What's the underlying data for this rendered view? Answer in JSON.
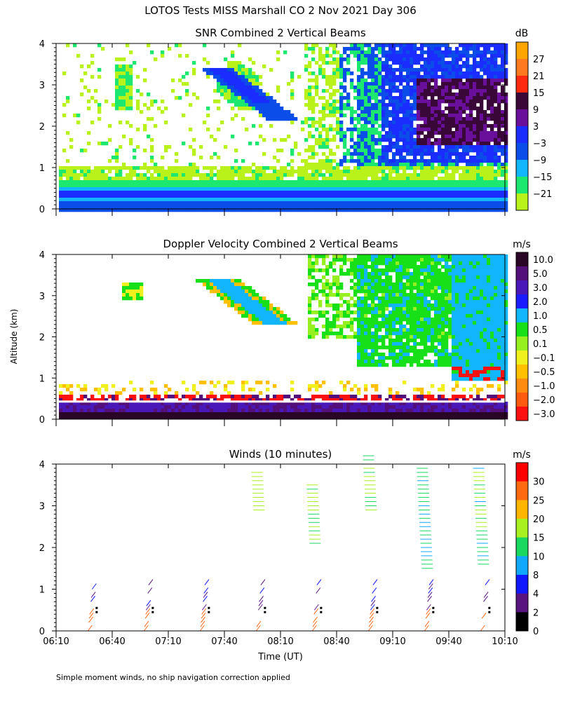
{
  "figure": {
    "title": "LOTOS Tests MISS Marshall CO   2 Nov 2021 Day 306",
    "ylabel": "Altitude (km)",
    "xlabel": "Time (UT)",
    "footnote": "Simple moment winds, no ship navigation correction applied",
    "x_ticks": [
      "06:10",
      "06:40",
      "07:10",
      "07:40",
      "08:10",
      "08:40",
      "09:10",
      "09:40",
      "10:10"
    ],
    "y_ticks": [
      "0",
      "1",
      "2",
      "3",
      "4"
    ]
  },
  "chart_data": [
    {
      "type": "heatmap",
      "title": "SNR Combined 2 Vertical Beams",
      "unit": "dB",
      "x_range": [
        "06:10",
        "10:10"
      ],
      "ylim": [
        0,
        4
      ],
      "colorbar_labels": [
        "27",
        "21",
        "15",
        "9",
        "3",
        "−3",
        "−9",
        "−15",
        "−21"
      ],
      "colorbar_colors": [
        "#ffa500",
        "#ff7a1f",
        "#ff2a10",
        "#3a0838",
        "#6a0f9c",
        "#1a2cff",
        "#0b4de8",
        "#11b6ff",
        "#1ce870",
        "#b8f21a"
      ]
    },
    {
      "type": "heatmap",
      "title": "Doppler Velocity Combined 2 Vertical Beams",
      "unit": "m/s",
      "x_range": [
        "06:10",
        "10:10"
      ],
      "ylim": [
        0,
        4
      ],
      "colorbar_labels": [
        "10.0",
        "5.0",
        "3.0",
        "2.0",
        "1.0",
        "0.5",
        "0.1",
        "−0.1",
        "−0.5",
        "−1.0",
        "−2.0",
        "−3.0"
      ],
      "colorbar_colors": [
        "#2a0626",
        "#54107a",
        "#4a18b8",
        "#1a1cff",
        "#11b6ff",
        "#18e018",
        "#96f020",
        "#f0f01e",
        "#ffc000",
        "#ff8c10",
        "#ff5a10",
        "#ff1010"
      ]
    },
    {
      "type": "scatter",
      "title": "Winds (10 minutes)",
      "unit": "m/s",
      "x_range": [
        "06:10",
        "10:10"
      ],
      "ylim": [
        0,
        4
      ],
      "colorbar_labels": [
        "30",
        "25",
        "20",
        "15",
        "10",
        "8",
        "4",
        "2",
        "0"
      ],
      "colorbar_colors": [
        "#ff0000",
        "#ff6a10",
        "#ffb400",
        "#a8f020",
        "#18d860",
        "#10a8ff",
        "#1018ff",
        "#5a1480",
        "#000000"
      ],
      "profiles": [
        "06:30",
        "07:00",
        "07:30",
        "08:00",
        "08:30",
        "09:00",
        "09:30",
        "10:00"
      ]
    }
  ]
}
